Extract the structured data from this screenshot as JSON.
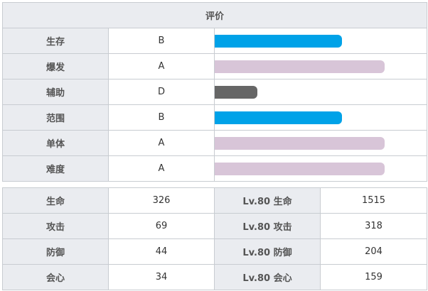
{
  "rating": {
    "header": "评价",
    "rows": [
      {
        "label": "生存",
        "grade": "B",
        "level": 0.6,
        "color": "#00a2e8"
      },
      {
        "label": "爆发",
        "grade": "A",
        "level": 0.8,
        "color": "#d8c5d8"
      },
      {
        "label": "辅助",
        "grade": "D",
        "level": 0.2,
        "color": "#666666"
      },
      {
        "label": "范围",
        "grade": "B",
        "level": 0.6,
        "color": "#00a2e8"
      },
      {
        "label": "单体",
        "grade": "A",
        "level": 0.8,
        "color": "#d8c5d8"
      },
      {
        "label": "难度",
        "grade": "A",
        "level": 0.8,
        "color": "#d8c5d8"
      }
    ]
  },
  "stats": {
    "rows": [
      {
        "label": "生命",
        "value": "326",
        "lv_label": "Lv.80 生命",
        "lv_value": "1515"
      },
      {
        "label": "攻击",
        "value": "69",
        "lv_label": "Lv.80 攻击",
        "lv_value": "318"
      },
      {
        "label": "防御",
        "value": "44",
        "lv_label": "Lv.80 防御",
        "lv_value": "204"
      },
      {
        "label": "会心",
        "value": "34",
        "lv_label": "Lv.80 会心",
        "lv_value": "159"
      }
    ]
  }
}
